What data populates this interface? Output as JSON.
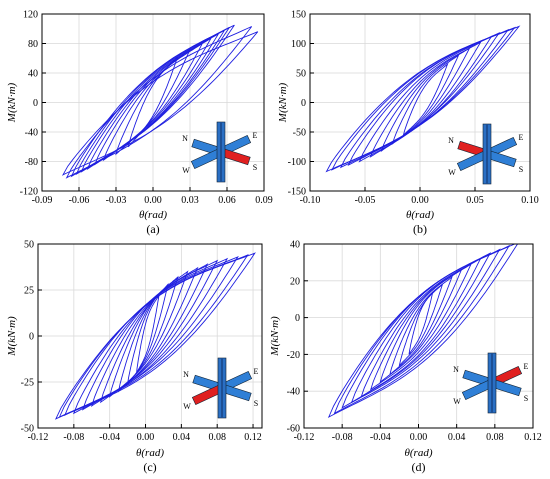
{
  "colors": {
    "curve": "#1f1fe0",
    "grid": "#d9d9d9",
    "axis": "#000000",
    "beam_blue": "#2f7fd6",
    "beam_red": "#e02020",
    "column": "#2a6fc4"
  },
  "chart_data": [
    {
      "type": "line",
      "panel_label": "(a)",
      "xlabel": "θ(rad)",
      "ylabel": "M(kN·m)",
      "xlim": [
        -0.09,
        0.09
      ],
      "ylim": [
        -120,
        120
      ],
      "xticks": [
        -0.09,
        -0.06,
        -0.03,
        0.0,
        0.03,
        0.06,
        0.09
      ],
      "xtick_labels": [
        "-0.09",
        "-0.06",
        "-0.03",
        "0.00",
        "0.03",
        "0.06",
        "0.09"
      ],
      "yticks": [
        -120,
        -80,
        -40,
        0,
        40,
        80,
        120
      ],
      "ytick_labels": [
        "-120",
        "-80",
        "-40",
        "0",
        "40",
        "80",
        "120"
      ],
      "grid": true,
      "inset": {
        "labels": [
          "N",
          "E",
          "W",
          "S"
        ],
        "red_beam": "S"
      },
      "hysteresis": {
        "cycles": [
          {
            "theta_min": -0.02,
            "theta_max": 0.02,
            "m_min": -60,
            "m_max": 62
          },
          {
            "theta_min": -0.03,
            "theta_max": 0.03,
            "m_min": -70,
            "m_max": 72
          },
          {
            "theta_min": -0.04,
            "theta_max": 0.04,
            "m_min": -78,
            "m_max": 80
          },
          {
            "theta_min": -0.047,
            "theta_max": 0.047,
            "m_min": -84,
            "m_max": 87
          },
          {
            "theta_min": -0.053,
            "theta_max": 0.053,
            "m_min": -90,
            "m_max": 93
          },
          {
            "theta_min": -0.058,
            "theta_max": 0.058,
            "m_min": -94,
            "m_max": 98
          },
          {
            "theta_min": -0.062,
            "theta_max": 0.062,
            "m_min": -97,
            "m_max": 102
          },
          {
            "theta_min": -0.066,
            "theta_max": 0.066,
            "m_min": -100,
            "m_max": 105
          },
          {
            "theta_min": -0.07,
            "theta_max": 0.08,
            "m_min": -102,
            "m_max": 103
          },
          {
            "theta_min": -0.073,
            "theta_max": 0.085,
            "m_min": -98,
            "m_max": 96
          }
        ],
        "loop_width": 0.55
      }
    },
    {
      "type": "line",
      "panel_label": "(b)",
      "xlabel": "θ(rad)",
      "ylabel": "M(kN·m)",
      "xlim": [
        -0.1,
        0.1
      ],
      "ylim": [
        -150,
        150
      ],
      "xticks": [
        -0.1,
        -0.05,
        0.0,
        0.05,
        0.1
      ],
      "xtick_labels": [
        "-0.10",
        "-0.05",
        "0.00",
        "0.05",
        "0.10"
      ],
      "yticks": [
        -150,
        -100,
        -50,
        0,
        50,
        100,
        150
      ],
      "ytick_labels": [
        "-150",
        "-100",
        "-50",
        "0",
        "50",
        "100",
        "150"
      ],
      "grid": true,
      "inset": {
        "labels": [
          "N",
          "E",
          "W",
          "S"
        ],
        "red_beam": "N"
      },
      "hysteresis": {
        "cycles": [
          {
            "theta_min": -0.015,
            "theta_max": 0.025,
            "m_min": -55,
            "m_max": 65
          },
          {
            "theta_min": -0.025,
            "theta_max": 0.035,
            "m_min": -70,
            "m_max": 80
          },
          {
            "theta_min": -0.035,
            "theta_max": 0.045,
            "m_min": -82,
            "m_max": 92
          },
          {
            "theta_min": -0.045,
            "theta_max": 0.055,
            "m_min": -92,
            "m_max": 102
          },
          {
            "theta_min": -0.055,
            "theta_max": 0.065,
            "m_min": -100,
            "m_max": 112
          },
          {
            "theta_min": -0.065,
            "theta_max": 0.072,
            "m_min": -106,
            "m_max": 118
          },
          {
            "theta_min": -0.072,
            "theta_max": 0.08,
            "m_min": -110,
            "m_max": 123
          },
          {
            "theta_min": -0.08,
            "theta_max": 0.086,
            "m_min": -114,
            "m_max": 127
          },
          {
            "theta_min": -0.085,
            "theta_max": 0.09,
            "m_min": -117,
            "m_max": 129
          }
        ],
        "loop_width": 0.6
      }
    },
    {
      "type": "line",
      "panel_label": "(c)",
      "xlabel": "θ(rad)",
      "ylabel": "M(kN·m)",
      "xlim": [
        -0.12,
        0.13
      ],
      "ylim": [
        -50,
        50
      ],
      "xticks": [
        -0.12,
        -0.08,
        -0.04,
        0.0,
        0.04,
        0.08,
        0.12
      ],
      "xtick_labels": [
        "-0.12",
        "-0.08",
        "-0.04",
        "0.00",
        "0.04",
        "0.08",
        "0.12"
      ],
      "yticks": [
        -50,
        -25,
        0,
        25,
        50
      ],
      "ytick_labels": [
        "-50",
        "-25",
        "0",
        "25",
        "50"
      ],
      "grid": true,
      "inset": {
        "labels": [
          "N",
          "E",
          "W",
          "S"
        ],
        "red_beam": "W"
      },
      "hysteresis": {
        "cycles": [
          {
            "theta_min": -0.01,
            "theta_max": 0.015,
            "m_min": -20,
            "m_max": 22
          },
          {
            "theta_min": -0.02,
            "theta_max": 0.025,
            "m_min": -26,
            "m_max": 28
          },
          {
            "theta_min": -0.03,
            "theta_max": 0.036,
            "m_min": -30,
            "m_max": 32
          },
          {
            "theta_min": -0.04,
            "theta_max": 0.047,
            "m_min": -33,
            "m_max": 35
          },
          {
            "theta_min": -0.05,
            "theta_max": 0.058,
            "m_min": -36,
            "m_max": 37
          },
          {
            "theta_min": -0.06,
            "theta_max": 0.069,
            "m_min": -38,
            "m_max": 39
          },
          {
            "theta_min": -0.07,
            "theta_max": 0.08,
            "m_min": -40,
            "m_max": 41
          },
          {
            "theta_min": -0.08,
            "theta_max": 0.091,
            "m_min": -42,
            "m_max": 42
          },
          {
            "theta_min": -0.09,
            "theta_max": 0.103,
            "m_min": -43,
            "m_max": 43
          },
          {
            "theta_min": -0.096,
            "theta_max": 0.114,
            "m_min": -44,
            "m_max": 44
          },
          {
            "theta_min": -0.1,
            "theta_max": 0.122,
            "m_min": -45,
            "m_max": 45
          }
        ],
        "loop_width": 0.7
      }
    },
    {
      "type": "line",
      "panel_label": "(d)",
      "xlabel": "θ(rad)",
      "ylabel": "M(kN·m)",
      "xlim": [
        -0.12,
        0.12
      ],
      "ylim": [
        -60,
        40
      ],
      "xticks": [
        -0.12,
        -0.08,
        -0.04,
        0.0,
        0.04,
        0.08,
        0.12
      ],
      "xtick_labels": [
        "-0.12",
        "-0.08",
        "-0.04",
        "0.00",
        "0.04",
        "0.08",
        "0.12"
      ],
      "yticks": [
        -60,
        -40,
        -20,
        0,
        20,
        40
      ],
      "ytick_labels": [
        "-60",
        "-40",
        "-20",
        "0",
        "20",
        "40"
      ],
      "grid": true,
      "inset": {
        "labels": [
          "N",
          "E",
          "W",
          "S"
        ],
        "red_beam": "E"
      },
      "hysteresis": {
        "cycles": [
          {
            "theta_min": -0.01,
            "theta_max": 0.015,
            "m_min": -20,
            "m_max": 14
          },
          {
            "theta_min": -0.02,
            "theta_max": 0.025,
            "m_min": -26,
            "m_max": 18
          },
          {
            "theta_min": -0.03,
            "theta_max": 0.035,
            "m_min": -31,
            "m_max": 22
          },
          {
            "theta_min": -0.04,
            "theta_max": 0.045,
            "m_min": -35,
            "m_max": 26
          },
          {
            "theta_min": -0.05,
            "theta_max": 0.055,
            "m_min": -39,
            "m_max": 29
          },
          {
            "theta_min": -0.06,
            "theta_max": 0.065,
            "m_min": -43,
            "m_max": 32
          },
          {
            "theta_min": -0.07,
            "theta_max": 0.075,
            "m_min": -46,
            "m_max": 35
          },
          {
            "theta_min": -0.08,
            "theta_max": 0.085,
            "m_min": -49,
            "m_max": 37
          },
          {
            "theta_min": -0.088,
            "theta_max": 0.095,
            "m_min": -52,
            "m_max": 39
          },
          {
            "theta_min": -0.094,
            "theta_max": 0.105,
            "m_min": -54,
            "m_max": 41
          }
        ],
        "loop_width": 0.65
      }
    }
  ]
}
